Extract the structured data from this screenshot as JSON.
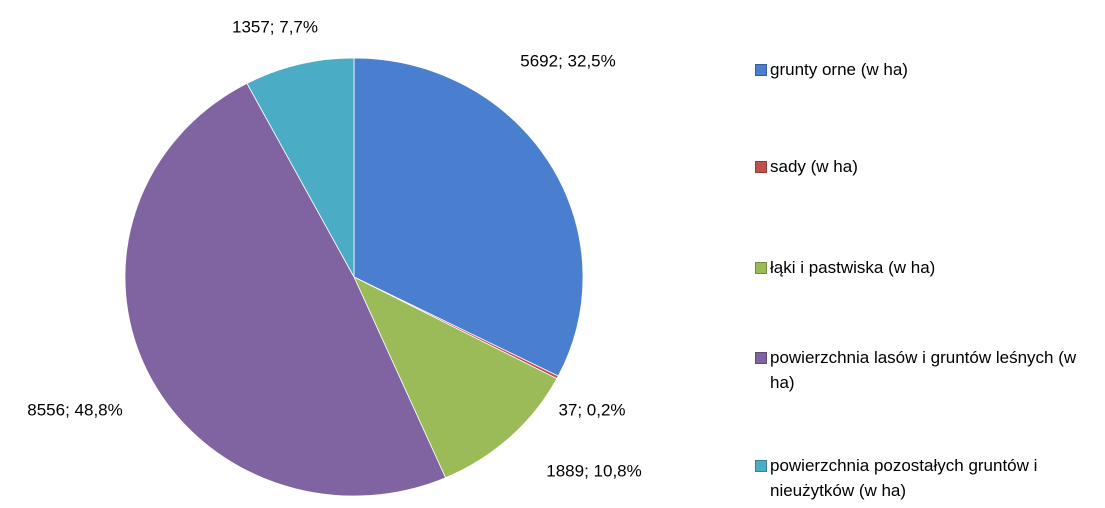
{
  "chart_data": {
    "type": "pie",
    "categories": [
      "grunty orne (w ha)",
      "sady (w ha)",
      "łąki i pastwiska (w ha)",
      "powierzchnia lasów i gruntów leśnych (w ha)",
      "powierzchnia pozostałych gruntów i nieużytków (w ha)"
    ],
    "values": [
      5692,
      37,
      1889,
      8556,
      1357
    ],
    "value_labels": [
      "5692; 32,5%",
      "37; 0,2%",
      "1889; 10,8%",
      "8556; 48,8%",
      "1357; 7,7%"
    ],
    "colors": [
      "#4a7fd0",
      "#c0504d",
      "#9bbb59",
      "#8064a2",
      "#4bacc6"
    ],
    "legend": "right"
  }
}
